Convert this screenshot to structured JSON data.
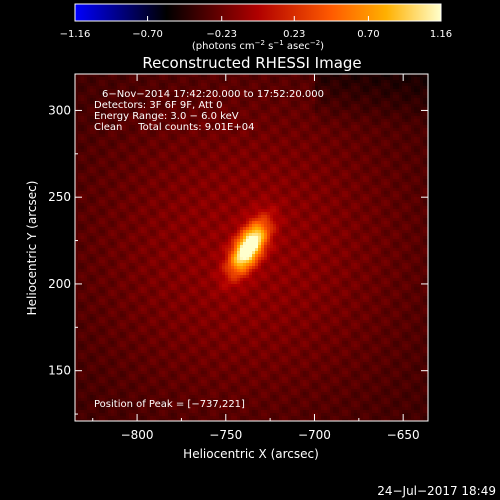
{
  "chart_data": {
    "type": "heatmap",
    "title": "Reconstructed RHESSI Image",
    "xlabel": "Heliocentric X (arcsec)",
    "ylabel": "Heliocentric Y (arcsec)",
    "xlim": [
      -835,
      -636
    ],
    "ylim": [
      121,
      321
    ],
    "x_ticks": [
      -800,
      -750,
      -700,
      -650
    ],
    "x_tick_labels": [
      "−800",
      "−750",
      "−700",
      "−650"
    ],
    "y_ticks": [
      150,
      200,
      250,
      300
    ],
    "y_tick_labels": [
      "150",
      "200",
      "250",
      "300"
    ],
    "colorbar": {
      "ticks": [
        -1.16,
        -0.7,
        -0.23,
        0.23,
        0.7,
        1.16
      ],
      "tick_labels": [
        "−1.16",
        "−0.70",
        "−0.23",
        "0.23",
        "0.70",
        "1.16"
      ],
      "unit_parts": [
        "(photons cm",
        "−2",
        " s",
        "−1",
        " asec",
        "−2",
        ")"
      ],
      "range": [
        -1.16,
        1.16
      ]
    },
    "annotations": [
      "6−Nov−2014 17:42:20.000 to 17:52:20.000",
      "Detectors: 3F 6F 9F, Att 0",
      "Energy Range: 3.0 − 6.0 keV",
      "Clean     Total counts: 9.01E+04"
    ],
    "peak_label": "Position of Peak = [−737,221]",
    "peak": {
      "x": -737,
      "y": 221,
      "value": 1.16
    },
    "source": {
      "sigma_major_arcsec": 11,
      "sigma_minor_arcsec": 5,
      "angle_deg": 60
    },
    "grid": false
  },
  "footer": {
    "timestamp": "24−Jul−2017 18:49"
  },
  "colors": {
    "background": "#000000",
    "text": "#ffffff"
  }
}
